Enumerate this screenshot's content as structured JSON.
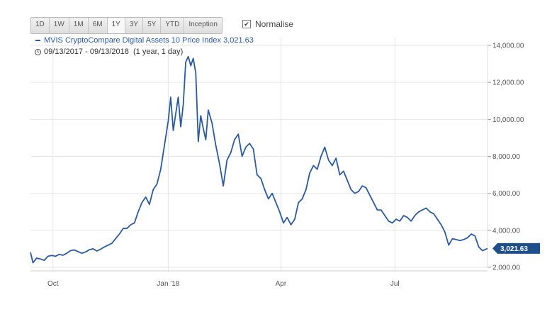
{
  "range_buttons": [
    "1D",
    "1W",
    "1M",
    "6M",
    "1Y",
    "3Y",
    "5Y",
    "YTD",
    "Inception"
  ],
  "active_range": "1Y",
  "normalise": {
    "label": "Normalise",
    "checked": true,
    "check_glyph": "✔"
  },
  "legend": {
    "label": "MVIS CryptoCompare Digital Assets 10 Price Index 3,021.63",
    "color": "#2c5aa0"
  },
  "date_range": {
    "icon": "clock-icon",
    "text": "09/13/2017 - 09/13/2018  (1 year, 1 day)"
  },
  "colors": {
    "line": "#2c5aa0",
    "badge": "#1f4e8c",
    "grid": "#e6e6e6"
  },
  "chart_data": {
    "type": "line",
    "title": "",
    "xlabel": "",
    "ylabel": "",
    "x_ticks": [
      "Oct",
      "Jan '18",
      "Apr",
      "Jul"
    ],
    "y_ticks": [
      "2,000.00",
      "4,000.00",
      "6,000.00",
      "8,000.00",
      "10,000.00",
      "12,000.00",
      "14,000.00"
    ],
    "ylim": [
      2000,
      14000
    ],
    "grid": true,
    "y_axis_side": "right",
    "last_value_badge": "3,021.63",
    "series": [
      {
        "name": "MVIS CryptoCompare Digital Assets 10 Price Index",
        "points": [
          [
            "2017-09-13",
            2810
          ],
          [
            "2017-09-15",
            2250
          ],
          [
            "2017-09-18",
            2500
          ],
          [
            "2017-09-21",
            2450
          ],
          [
            "2017-09-24",
            2380
          ],
          [
            "2017-09-27",
            2600
          ],
          [
            "2017-09-30",
            2640
          ],
          [
            "2017-10-03",
            2600
          ],
          [
            "2017-10-06",
            2700
          ],
          [
            "2017-10-09",
            2650
          ],
          [
            "2017-10-12",
            2760
          ],
          [
            "2017-10-15",
            2900
          ],
          [
            "2017-10-18",
            2940
          ],
          [
            "2017-10-21",
            2850
          ],
          [
            "2017-10-24",
            2760
          ],
          [
            "2017-10-27",
            2830
          ],
          [
            "2017-10-30",
            2950
          ],
          [
            "2017-11-02",
            3000
          ],
          [
            "2017-11-05",
            2880
          ],
          [
            "2017-11-08",
            2980
          ],
          [
            "2017-11-11",
            3100
          ],
          [
            "2017-11-14",
            3200
          ],
          [
            "2017-11-17",
            3300
          ],
          [
            "2017-11-20",
            3550
          ],
          [
            "2017-11-23",
            3800
          ],
          [
            "2017-11-26",
            4100
          ],
          [
            "2017-11-29",
            4100
          ],
          [
            "2017-12-02",
            4300
          ],
          [
            "2017-12-05",
            4400
          ],
          [
            "2017-12-08",
            5000
          ],
          [
            "2017-12-11",
            5500
          ],
          [
            "2017-12-14",
            5800
          ],
          [
            "2017-12-17",
            5400
          ],
          [
            "2017-12-20",
            6200
          ],
          [
            "2017-12-23",
            6500
          ],
          [
            "2017-12-26",
            7300
          ],
          [
            "2017-12-29",
            8600
          ],
          [
            "2018-01-01",
            9900
          ],
          [
            "2018-01-03",
            11200
          ],
          [
            "2018-01-05",
            9400
          ],
          [
            "2018-01-07",
            10300
          ],
          [
            "2018-01-09",
            11200
          ],
          [
            "2018-01-11",
            9600
          ],
          [
            "2018-01-13",
            10800
          ],
          [
            "2018-01-15",
            13100
          ],
          [
            "2018-01-17",
            13400
          ],
          [
            "2018-01-19",
            12900
          ],
          [
            "2018-01-21",
            13300
          ],
          [
            "2018-01-23",
            12500
          ],
          [
            "2018-01-25",
            8800
          ],
          [
            "2018-01-27",
            10200
          ],
          [
            "2018-01-29",
            9500
          ],
          [
            "2018-01-31",
            8900
          ],
          [
            "2018-02-02",
            10500
          ],
          [
            "2018-02-05",
            9800
          ],
          [
            "2018-02-08",
            8600
          ],
          [
            "2018-02-11",
            7600
          ],
          [
            "2018-02-14",
            6400
          ],
          [
            "2018-02-17",
            7800
          ],
          [
            "2018-02-20",
            8200
          ],
          [
            "2018-02-23",
            8900
          ],
          [
            "2018-02-26",
            9200
          ],
          [
            "2018-03-01",
            8000
          ],
          [
            "2018-03-04",
            8500
          ],
          [
            "2018-03-07",
            8700
          ],
          [
            "2018-03-10",
            8400
          ],
          [
            "2018-03-13",
            7000
          ],
          [
            "2018-03-16",
            6800
          ],
          [
            "2018-03-19",
            6200
          ],
          [
            "2018-03-22",
            5700
          ],
          [
            "2018-03-25",
            6000
          ],
          [
            "2018-03-28",
            5500
          ],
          [
            "2018-03-31",
            5000
          ],
          [
            "2018-04-03",
            4400
          ],
          [
            "2018-04-06",
            4700
          ],
          [
            "2018-04-09",
            4300
          ],
          [
            "2018-04-12",
            4600
          ],
          [
            "2018-04-15",
            5500
          ],
          [
            "2018-04-18",
            5700
          ],
          [
            "2018-04-21",
            6200
          ],
          [
            "2018-04-24",
            7100
          ],
          [
            "2018-04-27",
            7500
          ],
          [
            "2018-04-30",
            7300
          ],
          [
            "2018-05-03",
            8000
          ],
          [
            "2018-05-06",
            8500
          ],
          [
            "2018-05-09",
            7800
          ],
          [
            "2018-05-12",
            7500
          ],
          [
            "2018-05-15",
            7900
          ],
          [
            "2018-05-18",
            7000
          ],
          [
            "2018-05-21",
            7200
          ],
          [
            "2018-05-24",
            6700
          ],
          [
            "2018-05-27",
            6200
          ],
          [
            "2018-05-30",
            6000
          ],
          [
            "2018-06-02",
            6100
          ],
          [
            "2018-06-05",
            6400
          ],
          [
            "2018-06-08",
            6300
          ],
          [
            "2018-06-11",
            5900
          ],
          [
            "2018-06-14",
            5500
          ],
          [
            "2018-06-17",
            5100
          ],
          [
            "2018-06-20",
            5100
          ],
          [
            "2018-06-23",
            4800
          ],
          [
            "2018-06-26",
            4500
          ],
          [
            "2018-06-29",
            4400
          ],
          [
            "2018-07-02",
            4600
          ],
          [
            "2018-07-05",
            4500
          ],
          [
            "2018-07-08",
            4800
          ],
          [
            "2018-07-11",
            4700
          ],
          [
            "2018-07-14",
            4500
          ],
          [
            "2018-07-17",
            4800
          ],
          [
            "2018-07-20",
            5000
          ],
          [
            "2018-07-23",
            5100
          ],
          [
            "2018-07-26",
            5200
          ],
          [
            "2018-07-29",
            5000
          ],
          [
            "2018-08-01",
            4900
          ],
          [
            "2018-08-04",
            4600
          ],
          [
            "2018-08-07",
            4300
          ],
          [
            "2018-08-10",
            3900
          ],
          [
            "2018-08-13",
            3200
          ],
          [
            "2018-08-16",
            3550
          ],
          [
            "2018-08-19",
            3500
          ],
          [
            "2018-08-22",
            3450
          ],
          [
            "2018-08-25",
            3500
          ],
          [
            "2018-08-28",
            3600
          ],
          [
            "2018-08-31",
            3800
          ],
          [
            "2018-09-03",
            3700
          ],
          [
            "2018-09-06",
            3100
          ],
          [
            "2018-09-09",
            2900
          ],
          [
            "2018-09-13",
            3021.63
          ]
        ]
      }
    ]
  }
}
